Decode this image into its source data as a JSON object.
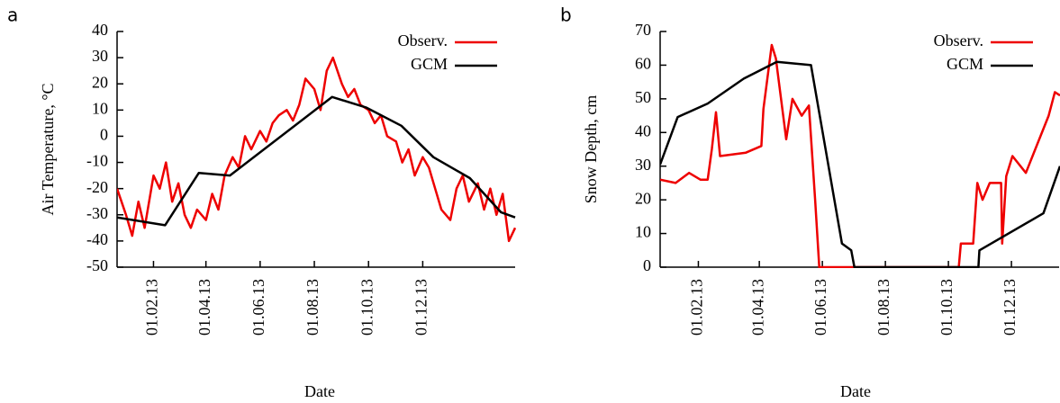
{
  "chart_data": [
    {
      "type": "line",
      "panel_label": "a",
      "y_label": "Air Temperature, °C",
      "x_label": "Date",
      "xlim": [
        "22.12.12",
        "15.03.14"
      ],
      "xticks": [
        "01.02.13",
        "01.04.13",
        "01.06.13",
        "01.08.13",
        "01.10.13",
        "01.12.13"
      ],
      "ylim": [
        -50,
        40
      ],
      "yticks": [
        40,
        30,
        20,
        10,
        0,
        -10,
        -20,
        -30,
        -40,
        -50
      ],
      "legend": "upper right",
      "series": [
        {
          "name": "Observ.",
          "color": "#ee0000",
          "x": [
            "22.12.12",
            "01.01.13",
            "08.01.13",
            "15.01.13",
            "22.01.13",
            "01.02.13",
            "08.02.13",
            "15.02.13",
            "22.02.13",
            "01.03.13",
            "08.03.13",
            "15.03.13",
            "22.03.13",
            "01.04.13",
            "08.04.13",
            "15.04.13",
            "22.04.13",
            "01.05.13",
            "08.05.13",
            "15.05.13",
            "22.05.13",
            "01.06.13",
            "08.06.13",
            "15.06.13",
            "22.06.13",
            "01.07.13",
            "08.07.13",
            "15.07.13",
            "22.07.13",
            "01.08.13",
            "08.08.13",
            "15.08.13",
            "22.08.13",
            "01.09.13",
            "08.09.13",
            "15.09.13",
            "22.09.13",
            "01.10.13",
            "08.10.13",
            "15.10.13",
            "22.10.13",
            "01.11.13",
            "08.11.13",
            "15.11.13",
            "22.11.13",
            "01.12.13",
            "08.12.13",
            "15.12.13",
            "22.12.13",
            "01.01.14",
            "08.01.14",
            "15.01.14",
            "22.01.14",
            "01.02.14",
            "08.02.14",
            "15.02.14",
            "22.02.14",
            "01.03.14",
            "08.03.14",
            "15.03.14"
          ],
          "values": [
            -20,
            -30,
            -38,
            -25,
            -35,
            -15,
            -20,
            -10,
            -25,
            -18,
            -30,
            -35,
            -28,
            -32,
            -22,
            -28,
            -15,
            -8,
            -12,
            0,
            -5,
            2,
            -2,
            5,
            8,
            10,
            6,
            12,
            22,
            18,
            10,
            25,
            30,
            20,
            15,
            18,
            12,
            10,
            5,
            8,
            0,
            -2,
            -10,
            -5,
            -15,
            -8,
            -12,
            -20,
            -28,
            -32,
            -20,
            -15,
            -25,
            -18,
            -28,
            -20,
            -30,
            -22,
            -40,
            -35
          ]
        },
        {
          "name": "GCM",
          "color": "#000000",
          "x": [
            "22.12.12",
            "14.02.13",
            "24.03.13",
            "28.04.13",
            "21.08.13",
            "28.09.13",
            "07.11.13",
            "13.12.13",
            "23.01.14",
            "27.02.14",
            "15.03.14"
          ],
          "values": [
            -31,
            -34,
            -14,
            -15,
            15,
            11,
            4,
            -8,
            -16,
            -29,
            -31
          ]
        }
      ]
    },
    {
      "type": "line",
      "panel_label": "b",
      "y_label": "Snow Depth, cm",
      "x_label": "Date",
      "xlim": [
        "26.12.12",
        "17.01.14"
      ],
      "xticks": [
        "01.02.13",
        "01.04.13",
        "01.06.13",
        "01.08.13",
        "01.10.13",
        "01.12.13"
      ],
      "ylim": [
        0,
        70
      ],
      "yticks": [
        0,
        10,
        20,
        30,
        40,
        50,
        60,
        70
      ],
      "legend": "upper right",
      "series": [
        {
          "name": "Observ.",
          "color": "#ee0000",
          "x": [
            "26.12.12",
            "10.01.13",
            "23.01.13",
            "03.02.13",
            "10.02.13",
            "14.02.13",
            "18.02.13",
            "22.02.13",
            "19.03.13",
            "03.04.13",
            "05.04.13",
            "13.04.13",
            "17.04.13",
            "27.04.13",
            "03.05.13",
            "12.05.13",
            "19.05.13",
            "25.05.13",
            "29.05.13",
            "11.10.13",
            "13.10.13",
            "25.10.13",
            "29.10.13",
            "03.11.13",
            "10.11.13",
            "21.11.13",
            "22.11.13",
            "26.11.13",
            "02.12.13",
            "15.12.13",
            "24.12.13",
            "06.01.14",
            "12.01.14",
            "17.01.14"
          ],
          "values": [
            26,
            25,
            28,
            26,
            26,
            35,
            46,
            33,
            34,
            36,
            47,
            66,
            62,
            38,
            50,
            45,
            48,
            20,
            0,
            0,
            7,
            7,
            25,
            20,
            25,
            25,
            7,
            27,
            33,
            28,
            35,
            45,
            52,
            51
          ]
        },
        {
          "name": "GCM",
          "color": "#000000",
          "x": [
            "26.12.12",
            "12.01.13",
            "10.02.13",
            "17.03.13",
            "18.04.13",
            "21.05.13",
            "20.06.13",
            "29.06.13",
            "02.07.13",
            "30.10.13",
            "31.10.13",
            "01.01.14",
            "17.01.14"
          ],
          "values": [
            30.5,
            44.6,
            48.6,
            56,
            61,
            60,
            7,
            5,
            0,
            0,
            5,
            16,
            30
          ]
        }
      ]
    }
  ]
}
